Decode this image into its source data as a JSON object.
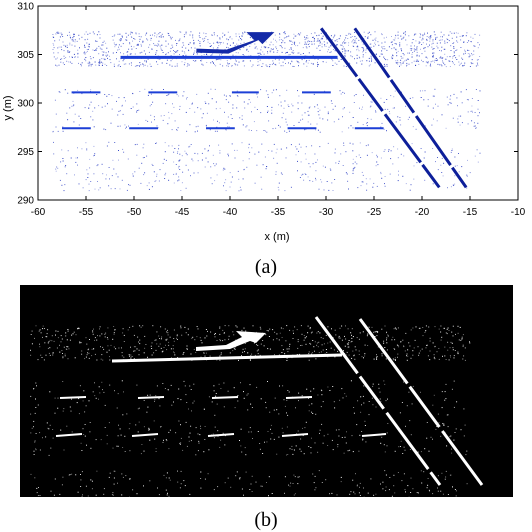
{
  "chart_data": [
    {
      "type": "scatter",
      "title": "",
      "xlabel": "x (m)",
      "ylabel": "y (m)",
      "xlim": [
        -60,
        -10
      ],
      "ylim": [
        290,
        310
      ],
      "xticks": [
        -60,
        -55,
        -50,
        -45,
        -40,
        -35,
        -30,
        -25,
        -20,
        -15,
        -10
      ],
      "yticks": [
        290,
        295,
        300,
        305,
        310
      ],
      "grid": false,
      "point_color": "#1a2fbf",
      "marking_color": "#1c3fd6",
      "density_bands": [
        {
          "ymin": 303.8,
          "ymax": 307.4,
          "density": "high"
        },
        {
          "ymin": 297.0,
          "ymax": 301.5,
          "density": "low"
        },
        {
          "ymin": 291.0,
          "ymax": 296.0,
          "density": "low"
        }
      ],
      "markings": {
        "stop_line": {
          "x": [
            -51.4,
            -28.8
          ],
          "y": 304.7
        },
        "lane_dashes": [
          {
            "y": 301.1,
            "x_segments": [
              [
                -56.5,
                -53.5
              ],
              [
                -48.5,
                -45.5
              ],
              [
                -39.8,
                -37.0
              ],
              [
                -32.5,
                -29.5
              ]
            ]
          },
          {
            "y": 297.4,
            "x_segments": [
              [
                -57.5,
                -54.5
              ],
              [
                -50.5,
                -47.5
              ],
              [
                -42.5,
                -39.5
              ],
              [
                -34.0,
                -31.0
              ],
              [
                -27.0,
                -24.0
              ]
            ]
          }
        ],
        "crosswalk_lines": [
          {
            "x": [
              -30.5,
              -18.2
            ],
            "y": [
              307.7,
              291.3
            ]
          },
          {
            "x": [
              -27.0,
              -15.4
            ],
            "y": [
              307.7,
              291.3
            ]
          }
        ],
        "arrow": {
          "tail": [
            -43.5,
            305.6
          ],
          "head": [
            -36.0,
            307.1
          ]
        }
      },
      "caption": "(a)"
    },
    {
      "type": "heatmap",
      "background": "#000000",
      "foreground": "#ffffff",
      "caption": "(b)"
    }
  ]
}
